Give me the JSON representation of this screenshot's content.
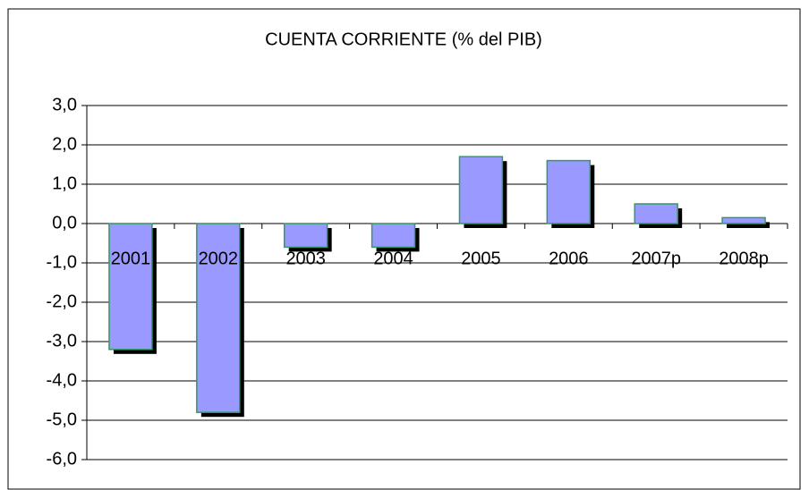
{
  "chart_data": {
    "type": "bar",
    "title": "CUENTA CORRIENTE (% del PIB)",
    "categories": [
      "2001",
      "2002",
      "2003",
      "2004",
      "2005",
      "2006",
      "2007p",
      "2008p"
    ],
    "values": [
      -3.2,
      -4.8,
      -0.6,
      -0.6,
      1.7,
      1.6,
      0.5,
      0.15
    ],
    "color": "#9999ff",
    "ylim": [
      -6,
      3
    ],
    "yticks": [
      {
        "value": 3,
        "label": "3,0"
      },
      {
        "value": 2,
        "label": "2,0"
      },
      {
        "value": 1,
        "label": "1,0"
      },
      {
        "value": 0,
        "label": "0,0"
      },
      {
        "value": -1,
        "label": "-1,0"
      },
      {
        "value": -2,
        "label": "-2,0"
      },
      {
        "value": -3,
        "label": "-3,0"
      },
      {
        "value": -4,
        "label": "-4,0"
      },
      {
        "value": -5,
        "label": "-5,0"
      },
      {
        "value": -6,
        "label": "-6,0"
      }
    ],
    "grid": true
  }
}
